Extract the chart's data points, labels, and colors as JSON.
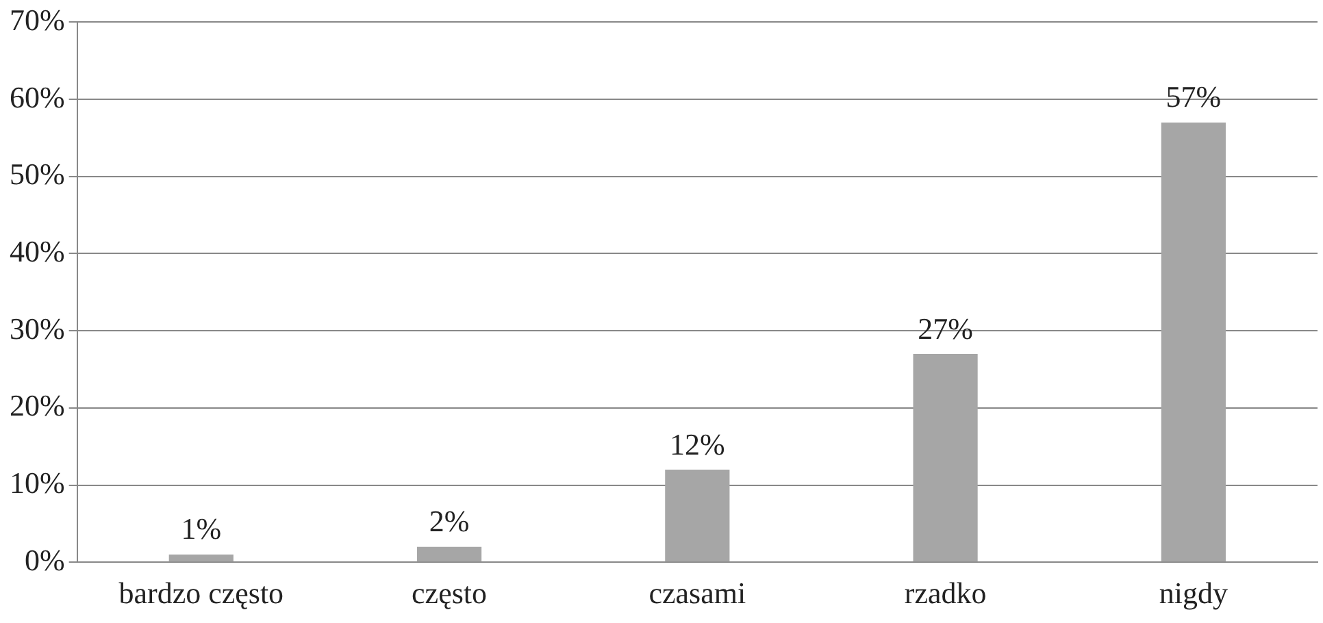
{
  "chart_data": {
    "type": "bar",
    "categories": [
      "bardzo często",
      "często",
      "czasami",
      "rzadko",
      "nigdy"
    ],
    "values": [
      1,
      2,
      12,
      27,
      57
    ],
    "color": "#a6a6a6",
    "value_labels": [
      "1%",
      "2%",
      "12%",
      "27%",
      "57%"
    ],
    "ylim": [
      0,
      70
    ],
    "yticks": [
      {
        "value": 0,
        "label": "0%"
      },
      {
        "value": 10,
        "label": "10%"
      },
      {
        "value": 20,
        "label": "20%"
      },
      {
        "value": 30,
        "label": "30%"
      },
      {
        "value": 40,
        "label": "40%"
      },
      {
        "value": 50,
        "label": "50%"
      },
      {
        "value": 60,
        "label": "60%"
      },
      {
        "value": 70,
        "label": "70%"
      }
    ],
    "grid": "y",
    "legend": false
  }
}
